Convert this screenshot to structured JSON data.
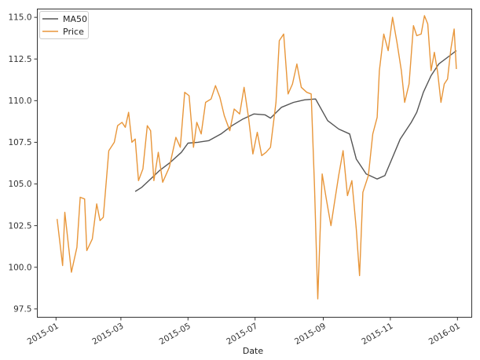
{
  "chart_data": {
    "type": "line",
    "title": "",
    "xlabel": "Date",
    "ylabel": "",
    "x_tick_labels": [
      "2015-01",
      "2015-03",
      "2015-05",
      "2015-07",
      "2015-09",
      "2015-11",
      "2016-01"
    ],
    "y_tick_labels": [
      "97.5",
      "100.0",
      "102.5",
      "105.0",
      "107.5",
      "110.0",
      "112.5",
      "115.0"
    ],
    "x_range": [
      "2014-12-15",
      "2016-01-14"
    ],
    "ylim": [
      97.0,
      115.5
    ],
    "grid": false,
    "legend": {
      "placement": "top-left"
    },
    "series": [
      {
        "name": "MA50",
        "color": "#555555",
        "points": [
          [
            "2015-03-14",
            104.55
          ],
          [
            "2015-03-20",
            104.8
          ],
          [
            "2015-03-28",
            105.3
          ],
          [
            "2015-04-05",
            105.8
          ],
          [
            "2015-04-15",
            106.3
          ],
          [
            "2015-04-25",
            106.9
          ],
          [
            "2015-05-01",
            107.45
          ],
          [
            "2015-05-10",
            107.5
          ],
          [
            "2015-05-20",
            107.6
          ],
          [
            "2015-05-31",
            108.0
          ],
          [
            "2015-06-10",
            108.5
          ],
          [
            "2015-06-20",
            108.9
          ],
          [
            "2015-06-30",
            109.2
          ],
          [
            "2015-07-10",
            109.15
          ],
          [
            "2015-07-15",
            108.95
          ],
          [
            "2015-07-25",
            109.6
          ],
          [
            "2015-08-05",
            109.9
          ],
          [
            "2015-08-15",
            110.05
          ],
          [
            "2015-08-25",
            110.1
          ],
          [
            "2015-09-05",
            108.8
          ],
          [
            "2015-09-15",
            108.3
          ],
          [
            "2015-09-25",
            108.0
          ],
          [
            "2015-10-01",
            106.5
          ],
          [
            "2015-10-10",
            105.6
          ],
          [
            "2015-10-20",
            105.3
          ],
          [
            "2015-10-27",
            105.5
          ],
          [
            "2015-11-03",
            106.6
          ],
          [
            "2015-11-10",
            107.7
          ],
          [
            "2015-11-20",
            108.7
          ],
          [
            "2015-11-25",
            109.3
          ],
          [
            "2015-12-01",
            110.5
          ],
          [
            "2015-12-08",
            111.5
          ],
          [
            "2015-12-15",
            112.2
          ],
          [
            "2015-12-25",
            112.7
          ],
          [
            "2015-12-31",
            113.0
          ]
        ]
      },
      {
        "name": "Price",
        "color": "#e8963a",
        "points": [
          [
            "2015-01-02",
            102.9
          ],
          [
            "2015-01-07",
            100.1
          ],
          [
            "2015-01-09",
            103.3
          ],
          [
            "2015-01-15",
            99.7
          ],
          [
            "2015-01-20",
            101.2
          ],
          [
            "2015-01-23",
            104.2
          ],
          [
            "2015-01-27",
            104.1
          ],
          [
            "2015-01-29",
            101.0
          ],
          [
            "2015-02-03",
            101.7
          ],
          [
            "2015-02-07",
            103.8
          ],
          [
            "2015-02-10",
            102.8
          ],
          [
            "2015-02-13",
            103.0
          ],
          [
            "2015-02-18",
            107.0
          ],
          [
            "2015-02-23",
            107.5
          ],
          [
            "2015-02-26",
            108.5
          ],
          [
            "2015-03-02",
            108.7
          ],
          [
            "2015-03-05",
            108.4
          ],
          [
            "2015-03-08",
            109.3
          ],
          [
            "2015-03-11",
            107.5
          ],
          [
            "2015-03-14",
            107.7
          ],
          [
            "2015-03-17",
            105.2
          ],
          [
            "2015-03-21",
            105.9
          ],
          [
            "2015-03-25",
            108.5
          ],
          [
            "2015-03-28",
            108.2
          ],
          [
            "2015-03-31",
            105.2
          ],
          [
            "2015-04-04",
            106.9
          ],
          [
            "2015-04-08",
            105.1
          ],
          [
            "2015-04-14",
            106.0
          ],
          [
            "2015-04-20",
            107.8
          ],
          [
            "2015-04-24",
            107.2
          ],
          [
            "2015-04-28",
            110.5
          ],
          [
            "2015-05-02",
            110.3
          ],
          [
            "2015-05-06",
            107.2
          ],
          [
            "2015-05-09",
            108.7
          ],
          [
            "2015-05-13",
            108.0
          ],
          [
            "2015-05-17",
            109.9
          ],
          [
            "2015-05-22",
            110.1
          ],
          [
            "2015-05-26",
            110.9
          ],
          [
            "2015-05-30",
            110.2
          ],
          [
            "2015-06-03",
            109.1
          ],
          [
            "2015-06-08",
            108.2
          ],
          [
            "2015-06-12",
            109.5
          ],
          [
            "2015-06-17",
            109.2
          ],
          [
            "2015-06-21",
            110.8
          ],
          [
            "2015-06-25",
            109.0
          ],
          [
            "2015-06-29",
            106.8
          ],
          [
            "2015-07-03",
            108.1
          ],
          [
            "2015-07-07",
            106.7
          ],
          [
            "2015-07-11",
            106.9
          ],
          [
            "2015-07-15",
            107.2
          ],
          [
            "2015-07-20",
            109.9
          ],
          [
            "2015-07-23",
            113.6
          ],
          [
            "2015-07-27",
            114.0
          ],
          [
            "2015-07-31",
            110.4
          ],
          [
            "2015-08-04",
            111.0
          ],
          [
            "2015-08-08",
            112.2
          ],
          [
            "2015-08-12",
            110.8
          ],
          [
            "2015-08-17",
            110.5
          ],
          [
            "2015-08-21",
            110.4
          ],
          [
            "2015-08-24",
            104.9
          ],
          [
            "2015-08-27",
            98.1
          ],
          [
            "2015-08-31",
            105.6
          ],
          [
            "2015-09-04",
            104.0
          ],
          [
            "2015-09-08",
            102.5
          ],
          [
            "2015-09-11",
            103.8
          ],
          [
            "2015-09-15",
            105.5
          ],
          [
            "2015-09-19",
            107.0
          ],
          [
            "2015-09-23",
            104.3
          ],
          [
            "2015-09-27",
            105.2
          ],
          [
            "2015-10-01",
            102.3
          ],
          [
            "2015-10-04",
            99.5
          ],
          [
            "2015-10-07",
            104.5
          ],
          [
            "2015-10-12",
            105.5
          ],
          [
            "2015-10-16",
            108.0
          ],
          [
            "2015-10-20",
            109.0
          ],
          [
            "2015-10-22",
            111.8
          ],
          [
            "2015-10-26",
            114.0
          ],
          [
            "2015-10-30",
            113.0
          ],
          [
            "2015-11-03",
            115.0
          ],
          [
            "2015-11-07",
            113.5
          ],
          [
            "2015-11-11",
            111.8
          ],
          [
            "2015-11-14",
            109.9
          ],
          [
            "2015-11-18",
            111.0
          ],
          [
            "2015-11-22",
            114.5
          ],
          [
            "2015-11-25",
            113.9
          ],
          [
            "2015-11-29",
            114.0
          ],
          [
            "2015-12-02",
            115.1
          ],
          [
            "2015-12-05",
            114.6
          ],
          [
            "2015-12-08",
            111.8
          ],
          [
            "2015-12-11",
            112.9
          ],
          [
            "2015-12-14",
            111.7
          ],
          [
            "2015-12-17",
            109.9
          ],
          [
            "2015-12-20",
            111.0
          ],
          [
            "2015-12-23",
            111.3
          ],
          [
            "2015-12-26",
            113.1
          ],
          [
            "2015-12-29",
            114.3
          ],
          [
            "2015-12-31",
            111.9
          ]
        ]
      }
    ]
  }
}
